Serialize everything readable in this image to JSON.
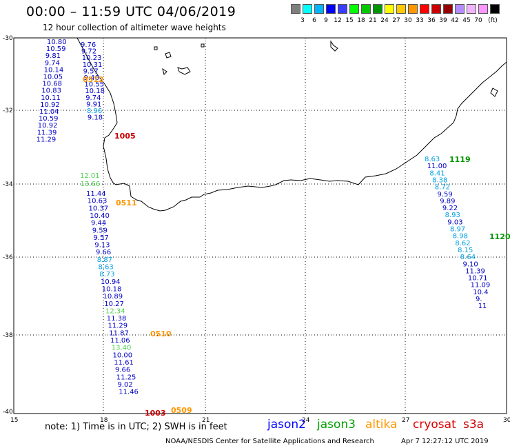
{
  "title": "00:00 – 11:59 UTC 04/06/2019",
  "subtitle": "12 hour collection of altimeter wave heights",
  "scale": {
    "unit_label": "(ft)",
    "colors": [
      "#7f7f7f",
      "#00ffff",
      "#00b4ff",
      "#0000ff",
      "#3c3cff",
      "#00ff00",
      "#00c800",
      "#009600",
      "#ffff00",
      "#ffc800",
      "#ff9600",
      "#ff0000",
      "#c80000",
      "#960000",
      "#b48cff",
      "#f0b4ff",
      "#ff96ff",
      "#000000"
    ],
    "labels": [
      "3",
      "6",
      "9",
      "12",
      "15",
      "18",
      "21",
      "24",
      "27",
      "30",
      "33",
      "36",
      "39",
      "42",
      "45",
      "70"
    ]
  },
  "map": {
    "lat_labels": [
      "-30",
      "-32",
      "-34",
      "-36",
      "-38",
      "-40"
    ],
    "lon_labels": [
      "15",
      "18",
      "21",
      "24",
      "27",
      "30"
    ]
  },
  "tracks": [
    {
      "sensor": "jason2",
      "color": "#0000c8",
      "values": [
        "10.80",
        "10.59",
        "9.81",
        "9.74",
        "10.14",
        "10.05",
        "10.68",
        "10.83",
        "10.11",
        "10.92",
        "11.04",
        "10.59",
        "10.92",
        "11.39",
        "11.29"
      ]
    },
    {
      "sensor": "jason2",
      "color": "#0000c8",
      "values": [
        "9.76",
        "9.72",
        "10.23",
        "10.31",
        "9.57",
        "9.46",
        "10.55",
        "10.18",
        "9.74",
        "9.91",
        "8.96",
        "9.18"
      ]
    },
    {
      "sensor": "jason3",
      "color": "#00a000",
      "values": [
        "12.01",
        "13.66"
      ]
    },
    {
      "sensor": "jason2",
      "color": "#0000c8",
      "values": [
        "11.44",
        "10.63",
        "10.37",
        "10.40",
        "9.44",
        "9.59",
        "9.57",
        "9.13",
        "9.66",
        "8.87",
        "8.63",
        "8.73",
        "10.94",
        "10.18",
        "10.89",
        "10.27",
        "12.34",
        "11.38",
        "11.29",
        "11.87",
        "11.06",
        "13.40",
        "10.00",
        "11.61",
        "9.66",
        "11.25",
        "9.02",
        "11.46"
      ]
    },
    {
      "sensor": "jason2",
      "color": "#0000c8",
      "values": [
        "8.63",
        "11.00",
        "8.41",
        "8.38",
        "8.72",
        "9.59",
        "9.89",
        "9.22",
        "8.93",
        "9.03",
        "8.97",
        "8.98",
        "8.62",
        "8.15",
        "8.64",
        "9.10",
        "11.39",
        "10.71",
        "11.09",
        "10.4",
        "9.",
        "11"
      ]
    }
  ],
  "time_labels": [
    {
      "text": "0512",
      "color": "#ff9600"
    },
    {
      "text": "1005",
      "color": "#c80000"
    },
    {
      "text": "0511",
      "color": "#ff9600"
    },
    {
      "text": "0510",
      "color": "#ff9600"
    },
    {
      "text": "1003",
      "color": "#c80000"
    },
    {
      "text": "0509",
      "color": "#ff9600"
    },
    {
      "text": "1119",
      "color": "#009600"
    },
    {
      "text": "1120",
      "color": "#009600"
    }
  ],
  "footer": {
    "note": "note:  1) Time is in UTC;  2) SWH is in feet",
    "legend": [
      {
        "name": "jason2",
        "color": "#0000ff"
      },
      {
        "name": "jason3",
        "color": "#00a000"
      },
      {
        "name": "altika",
        "color": "#ff9600"
      },
      {
        "name": "cryosat",
        "color": "#e00000"
      },
      {
        "name": "s3a",
        "color": "#c80000"
      }
    ],
    "credit": "NOAA/NESDIS Center for Satellite Applications and Research",
    "timestamp": "Apr  7 12:27:12 UTC 2019"
  }
}
